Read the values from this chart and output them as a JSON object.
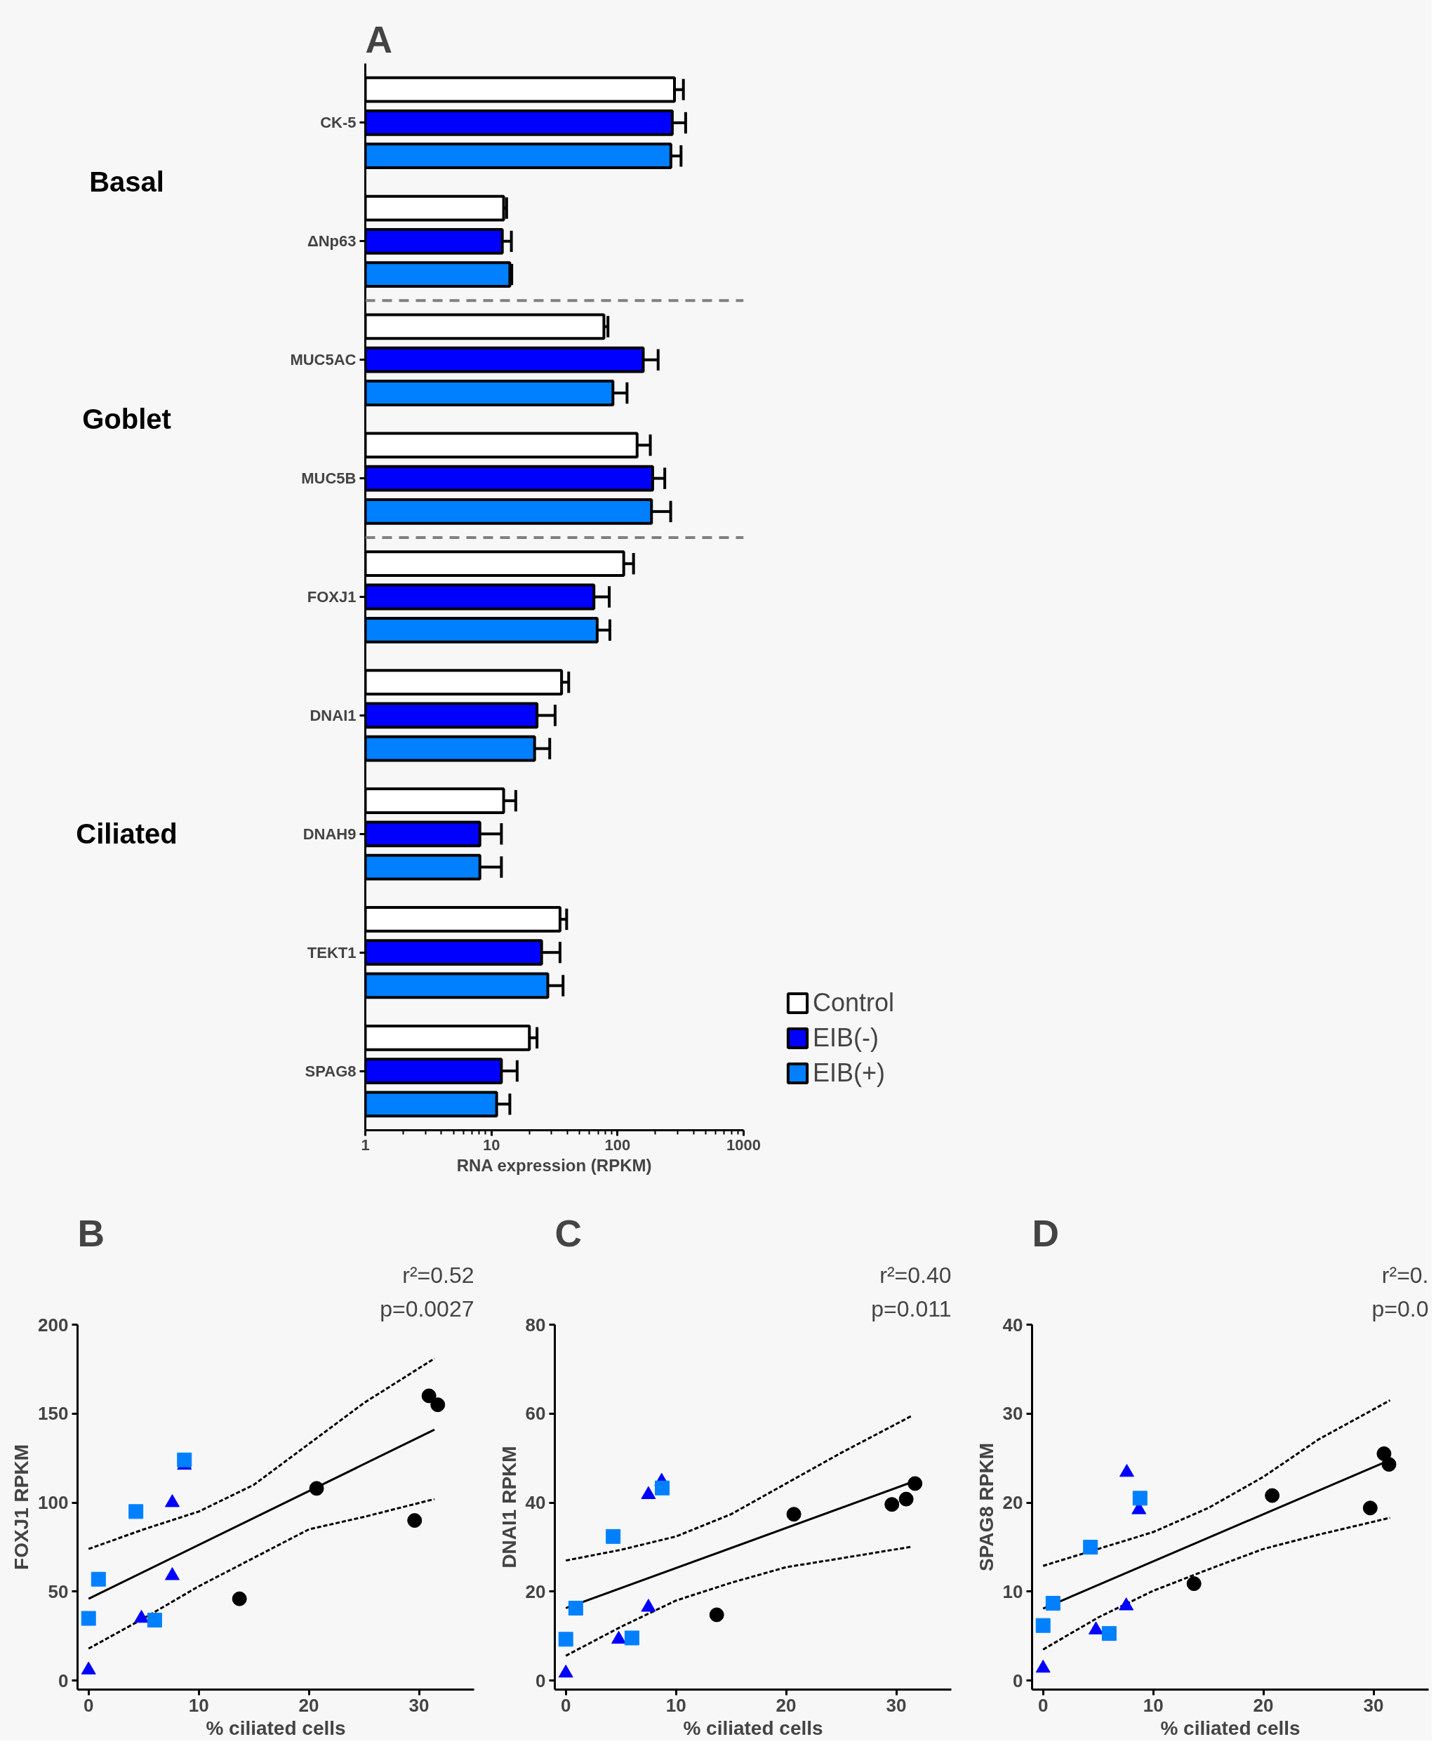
{
  "chart_data": [
    {
      "type": "bar",
      "orientation": "horizontal",
      "title": "A",
      "categories": [
        "CK-5",
        "ΔNp63",
        "MUC5AC",
        "MUC5B",
        "FOXJ1",
        "DNAI1",
        "DNAH9",
        "TEKT1",
        "SPAG8"
      ],
      "log": "x",
      "xlim": [
        1,
        1000
      ],
      "xticks": [
        1,
        10,
        100,
        1000
      ],
      "xlabel": "RNA expression (RPKM)",
      "legend": "right",
      "annotations": [
        "Basal",
        "Goblet",
        "Ciliated"
      ],
      "series": [
        {
          "name": "Control",
          "color": "#ffffff",
          "values": [
            283,
            12.5,
            78,
            143,
            112,
            36,
            12.5,
            35,
            20
          ],
          "errors": [
            [
              283,
              333
            ],
            [
              12.5,
              13.2
            ],
            [
              78,
              84
            ],
            [
              143,
              182
            ],
            [
              112,
              134
            ],
            [
              36,
              41
            ],
            [
              12.5,
              15.6
            ],
            [
              35,
              39.5
            ],
            [
              20,
              23
            ]
          ]
        },
        {
          "name": "EIB(-)",
          "color": "#0000ff",
          "values": [
            272,
            12.2,
            160,
            190,
            65,
            23,
            8.1,
            25,
            12
          ],
          "errors": [
            [
              272,
              347
            ],
            [
              12.2,
              14.4
            ],
            [
              160,
              210
            ],
            [
              190,
              237
            ],
            [
              65,
              86
            ],
            [
              23,
              32
            ],
            [
              8.1,
              12
            ],
            [
              25,
              35
            ],
            [
              12,
              16
            ]
          ]
        },
        {
          "name": "EIB(+)",
          "color": "#0080ff",
          "values": [
            265,
            14,
            92,
            186,
            69,
            22,
            8.1,
            28,
            11
          ],
          "errors": [
            [
              265,
              319
            ],
            [
              14,
              14.5
            ],
            [
              92,
              119
            ],
            [
              186,
              264
            ],
            [
              69,
              87
            ],
            [
              22,
              29
            ],
            [
              8.1,
              12
            ],
            [
              28,
              37
            ],
            [
              11,
              14
            ]
          ]
        }
      ]
    },
    {
      "type": "scatter",
      "title": "B",
      "xlabel": "% ciliated cells",
      "ylabel": "FOXJ1 RPKM",
      "xlim": [
        -1,
        35
      ],
      "ylim": [
        -5,
        200
      ],
      "xticks": [
        0,
        10,
        20,
        30
      ],
      "yticks": [
        0,
        50,
        100,
        150,
        200
      ],
      "annotations": [
        "r²=0.52",
        "p=0.0027"
      ],
      "series": [
        {
          "type": "line",
          "color": "#000000",
          "line_style": "dashed",
          "x": [
            0,
            5,
            10,
            15,
            20,
            25,
            31.4
          ],
          "values": [
            74,
            85,
            95,
            110,
            133,
            156,
            181
          ]
        },
        {
          "type": "line",
          "color": "#000000",
          "line_style": "dashed",
          "x": [
            0,
            5,
            10,
            15,
            20,
            25,
            31.4
          ],
          "values": [
            18,
            35,
            53,
            69,
            85,
            92,
            102
          ]
        },
        {
          "type": "line",
          "color": "#000000",
          "line_style": "solid",
          "x": [
            0,
            31.4
          ],
          "values": [
            46,
            141
          ]
        },
        {
          "type": "scatter",
          "marker": "circle",
          "color": "#000000",
          "x": [
            13.7,
            20.7,
            29.6,
            30.9,
            31.7
          ],
          "values": [
            46,
            108,
            90,
            160,
            155
          ]
        },
        {
          "type": "scatter",
          "marker": "triangle",
          "color": "#0000ff",
          "x": [
            0,
            4.8,
            7.6,
            7.6,
            8.7
          ],
          "values": [
            6,
            35,
            59,
            100,
            121
          ]
        },
        {
          "type": "scatter",
          "marker": "square",
          "color": "#0080ff",
          "x": [
            0,
            0.9,
            4.3,
            6.0,
            8.7
          ],
          "values": [
            35,
            57,
            95,
            34,
            124
          ]
        }
      ]
    },
    {
      "type": "scatter",
      "title": "C",
      "xlabel": "% ciliated cells",
      "ylabel": "DNAI1 RPKM",
      "xlim": [
        -1,
        35
      ],
      "ylim": [
        -2,
        80
      ],
      "xticks": [
        0,
        10,
        20,
        30
      ],
      "yticks": [
        0,
        20,
        40,
        60,
        80
      ],
      "annotations": [
        "r²=0.40",
        "p=0.011"
      ],
      "series": [
        {
          "type": "line",
          "color": "#000000",
          "line_style": "dashed",
          "x": [
            0,
            5,
            10,
            15,
            20,
            25,
            31.4
          ],
          "values": [
            27,
            29.4,
            32.4,
            37.4,
            44.3,
            51.2,
            59.5
          ]
        },
        {
          "type": "line",
          "color": "#000000",
          "line_style": "dashed",
          "x": [
            0,
            5,
            10,
            15,
            20,
            25,
            31.4
          ],
          "values": [
            5.6,
            12.1,
            18,
            22,
            25.5,
            27.5,
            30.1
          ]
        },
        {
          "type": "line",
          "color": "#000000",
          "line_style": "solid",
          "x": [
            0,
            31.4
          ],
          "values": [
            16.3,
            44.6
          ]
        },
        {
          "type": "scatter",
          "marker": "circle",
          "color": "#000000",
          "x": [
            13.7,
            20.7,
            29.6,
            30.9,
            31.7
          ],
          "values": [
            14.8,
            37.4,
            39.6,
            40.8,
            44.3
          ]
        },
        {
          "type": "scatter",
          "marker": "triangle",
          "color": "#0000ff",
          "x": [
            0,
            4.8,
            7.5,
            7.5,
            8.7
          ],
          "values": [
            1.7,
            9.3,
            16.5,
            41.8,
            44.8
          ]
        },
        {
          "type": "scatter",
          "marker": "square",
          "color": "#0080ff",
          "x": [
            0,
            0.9,
            4.3,
            6.0,
            8.75
          ],
          "values": [
            9.3,
            16.3,
            32.4,
            9.6,
            43.3
          ]
        }
      ]
    },
    {
      "type": "scatter",
      "title": "D",
      "xlabel": "% ciliated cells",
      "ylabel": "SPAG8 RPKM",
      "xlim": [
        -1,
        35
      ],
      "ylim": [
        -1,
        40
      ],
      "xticks": [
        0,
        10,
        20,
        30
      ],
      "yticks": [
        0,
        10,
        20,
        30,
        40
      ],
      "annotations": [
        "r²=0.",
        "p=0.0"
      ],
      "series": [
        {
          "type": "line",
          "color": "#000000",
          "line_style": "dashed",
          "x": [
            0,
            5,
            10,
            15,
            20,
            25,
            31.5
          ],
          "values": [
            12.9,
            14.8,
            16.7,
            19.4,
            22.9,
            27.1,
            31.5
          ]
        },
        {
          "type": "line",
          "color": "#000000",
          "line_style": "dashed",
          "x": [
            0,
            5,
            10,
            15,
            20,
            25,
            31.5
          ],
          "values": [
            3.5,
            7.1,
            10.1,
            12.5,
            14.8,
            16.4,
            18.3
          ]
        },
        {
          "type": "line",
          "color": "#000000",
          "line_style": "solid",
          "x": [
            0,
            31.5
          ],
          "values": [
            8.1,
            24.8
          ]
        },
        {
          "type": "scatter",
          "marker": "circle",
          "color": "#000000",
          "x": [
            13.7,
            20.8,
            29.7,
            30.95,
            31.4
          ],
          "values": [
            10.9,
            20.8,
            19.4,
            25.5,
            24.3
          ]
        },
        {
          "type": "scatter",
          "marker": "triangle",
          "color": "#0000ff",
          "x": [
            0,
            4.8,
            7.55,
            7.6,
            8.7
          ],
          "values": [
            1.4,
            5.7,
            8.4,
            23.4,
            19.2
          ]
        },
        {
          "type": "scatter",
          "marker": "square",
          "color": "#0080ff",
          "x": [
            0,
            0.9,
            4.3,
            6.0,
            8.8
          ],
          "values": [
            6.2,
            8.7,
            15,
            5.3,
            20.5
          ]
        }
      ]
    }
  ]
}
